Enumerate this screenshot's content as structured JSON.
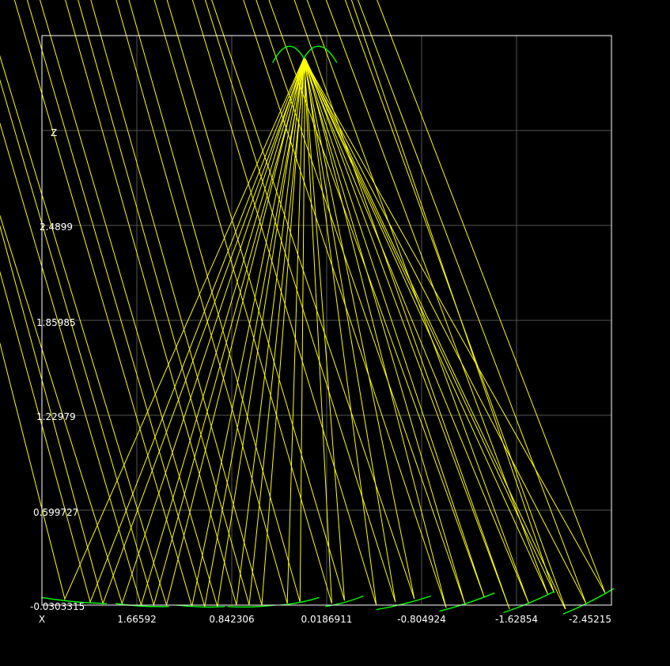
{
  "chart_data": {
    "type": "line",
    "title": "",
    "xlabel": "X",
    "ylabel": "Z",
    "x_reversed": true,
    "xlim": [
      2.08,
      -2.4
    ],
    "ylim": [
      -0.0303315,
      3.75
    ],
    "grid": true,
    "x_tick_labels": [
      "X",
      "1.66592",
      "0.842306",
      "0.0186911",
      "-0.804924",
      "-1.62854",
      "-2.45215"
    ],
    "y_tick_labels": [
      "-0.0303315",
      "0.599727",
      "1.22979",
      "1.85985",
      "2.4899",
      "Z"
    ],
    "colors": {
      "background": "#000000",
      "grid": "#555555",
      "frame": "#ffffff",
      "rays": "#ffff00",
      "mirrors": "#00ff00",
      "labels": "#ffffff"
    },
    "mirror_segments": [
      {
        "x": [
          2.08,
          1.57
        ],
        "z": [
          0.02,
          -0.02
        ]
      },
      {
        "x": [
          1.5,
          1.08
        ],
        "z": [
          -0.02,
          -0.04
        ]
      },
      {
        "x": [
          1.02,
          0.64
        ],
        "z": [
          -0.03,
          -0.04
        ]
      },
      {
        "x": [
          0.62,
          0.25
        ],
        "z": [
          -0.04,
          -0.03
        ]
      },
      {
        "x": [
          0.2,
          -0.1
        ],
        "z": [
          -0.03,
          0.02
        ]
      },
      {
        "x": [
          -0.15,
          -0.45
        ],
        "z": [
          -0.04,
          0.03
        ]
      },
      {
        "x": [
          -0.55,
          -0.98
        ],
        "z": [
          -0.06,
          0.03
        ]
      },
      {
        "x": [
          -1.05,
          -1.48
        ],
        "z": [
          -0.07,
          0.05
        ]
      },
      {
        "x": [
          -1.55,
          -1.95
        ],
        "z": [
          -0.08,
          0.06
        ]
      },
      {
        "x": [
          -2.02,
          -2.42
        ],
        "z": [
          -0.09,
          0.08
        ]
      }
    ],
    "receiver": {
      "x": [
        0.265,
        0.14,
        0.02,
        -0.1,
        -0.24
      ],
      "z": [
        3.57,
        3.71,
        3.6,
        3.71,
        3.57
      ]
    },
    "rays": [
      {
        "x": [
          3.1,
          1.9,
          0.02
        ],
        "z": [
          4.0,
          0.01,
          3.6
        ]
      },
      {
        "x": [
          3.0,
          1.7,
          0.02
        ],
        "z": [
          4.0,
          -0.01,
          3.6
        ]
      },
      {
        "x": [
          2.9,
          1.6,
          0.01
        ],
        "z": [
          4.0,
          -0.02,
          3.6
        ]
      },
      {
        "x": [
          2.95,
          1.45,
          0.02
        ],
        "z": [
          4.0,
          -0.02,
          3.6
        ]
      },
      {
        "x": [
          2.7,
          1.3,
          0.02
        ],
        "z": [
          4.0,
          -0.03,
          3.6
        ]
      },
      {
        "x": [
          2.6,
          1.2,
          0.01
        ],
        "z": [
          4.0,
          -0.03,
          3.6
        ]
      },
      {
        "x": [
          2.55,
          1.1,
          0.02
        ],
        "z": [
          4.0,
          -0.03,
          3.6
        ]
      },
      {
        "x": [
          2.3,
          0.9,
          0.02
        ],
        "z": [
          4.0,
          -0.04,
          3.6
        ]
      },
      {
        "x": [
          2.2,
          0.8,
          0.01
        ],
        "z": [
          4.0,
          -0.04,
          3.6
        ]
      },
      {
        "x": [
          2.1,
          0.7,
          0.02
        ],
        "z": [
          4.0,
          -0.04,
          3.6
        ]
      },
      {
        "x": [
          1.9,
          0.55,
          0.02
        ],
        "z": [
          4.0,
          -0.03,
          3.6
        ]
      },
      {
        "x": [
          1.8,
          0.45,
          0.01
        ],
        "z": [
          4.0,
          -0.03,
          3.6
        ]
      },
      {
        "x": [
          1.7,
          0.35,
          0.02
        ],
        "z": [
          4.0,
          -0.03,
          3.6
        ]
      },
      {
        "x": [
          1.5,
          0.15,
          0.02
        ],
        "z": [
          4.0,
          -0.02,
          3.6
        ]
      },
      {
        "x": [
          1.4,
          0.05,
          0.01
        ],
        "z": [
          4.0,
          -0.01,
          3.6
        ]
      },
      {
        "x": [
          1.2,
          -0.2,
          0.02
        ],
        "z": [
          4.0,
          -0.02,
          3.6
        ]
      },
      {
        "x": [
          1.1,
          -0.3,
          0.02
        ],
        "z": [
          4.0,
          0.0,
          3.6
        ]
      },
      {
        "x": [
          0.9,
          -0.55,
          0.01
        ],
        "z": [
          4.0,
          -0.03,
          3.6
        ]
      },
      {
        "x": [
          0.8,
          -0.7,
          0.02
        ],
        "z": [
          4.0,
          -0.01,
          3.6
        ]
      },
      {
        "x": [
          0.75,
          -0.85,
          0.02
        ],
        "z": [
          4.0,
          0.01,
          3.6
        ]
      },
      {
        "x": [
          0.5,
          -1.1,
          0.01
        ],
        "z": [
          4.0,
          -0.05,
          3.6
        ]
      },
      {
        "x": [
          0.4,
          -1.25,
          0.02
        ],
        "z": [
          4.0,
          -0.03,
          3.6
        ]
      },
      {
        "x": [
          0.3,
          -1.4,
          0.02
        ],
        "z": [
          4.0,
          0.02,
          3.6
        ]
      },
      {
        "x": [
          0.1,
          -1.6,
          0.01
        ],
        "z": [
          4.0,
          -0.06,
          3.6
        ]
      },
      {
        "x": [
          0.0,
          -1.75,
          0.02
        ],
        "z": [
          4.0,
          -0.02,
          3.6
        ]
      },
      {
        "x": [
          -0.15,
          -1.9,
          0.02
        ],
        "z": [
          4.0,
          0.04,
          3.6
        ]
      },
      {
        "x": [
          -0.3,
          -2.05,
          0.01
        ],
        "z": [
          4.0,
          -0.08,
          3.6
        ]
      },
      {
        "x": [
          -0.4,
          -2.2,
          0.02
        ],
        "z": [
          4.0,
          -0.02,
          3.6
        ]
      },
      {
        "x": [
          -0.55,
          -2.35,
          0.02
        ],
        "z": [
          4.0,
          0.05,
          3.6
        ]
      },
      {
        "x": [
          -0.35,
          -1.95,
          0.02
        ],
        "z": [
          4.0,
          0.05,
          3.6
        ]
      }
    ]
  }
}
